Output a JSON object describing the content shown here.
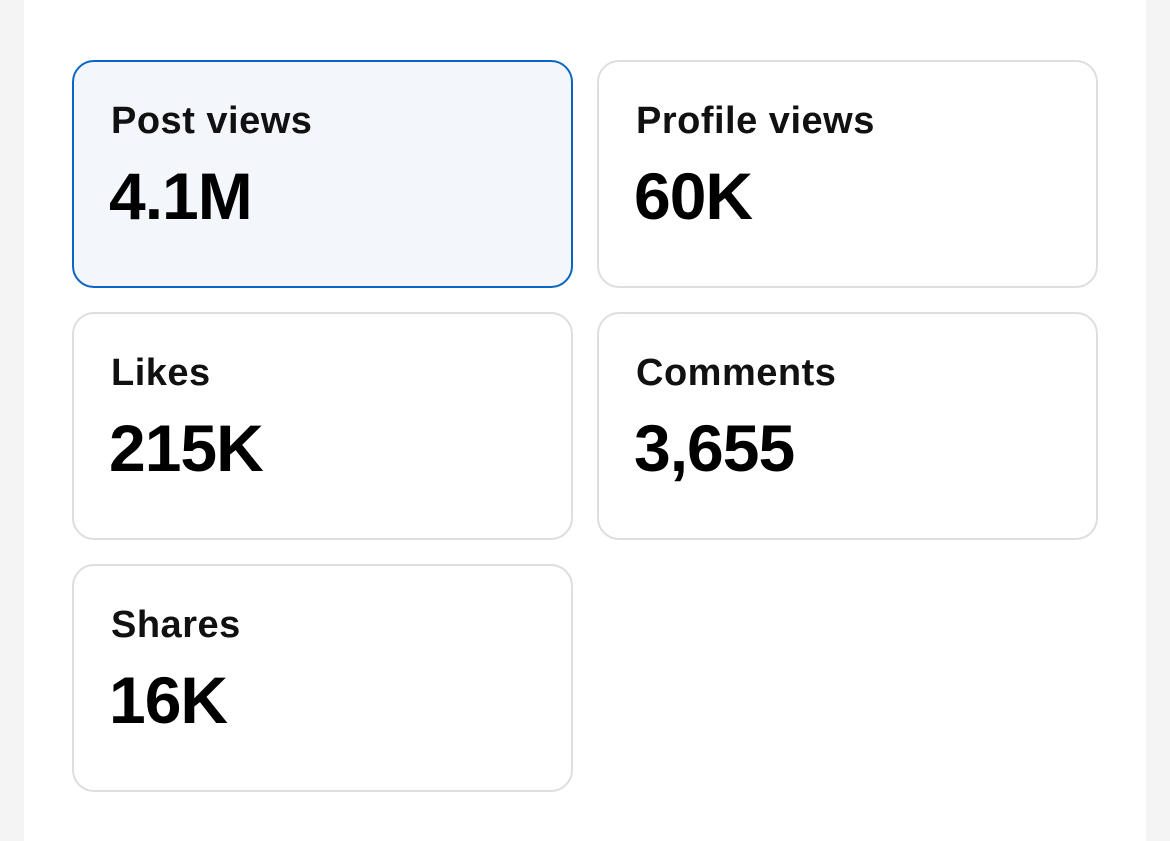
{
  "metrics": [
    {
      "label": "Post views",
      "value": "4.1M",
      "selected": true
    },
    {
      "label": "Profile views",
      "value": "60K",
      "selected": false
    },
    {
      "label": "Likes",
      "value": "215K",
      "selected": false
    },
    {
      "label": "Comments",
      "value": "3,655",
      "selected": false
    },
    {
      "label": "Shares",
      "value": "16K",
      "selected": false
    }
  ],
  "colors": {
    "accent": "#0a66c2",
    "selected_background": "#f3f7fc",
    "card_border": "#dedede",
    "page_background": "#f4f4f4"
  }
}
